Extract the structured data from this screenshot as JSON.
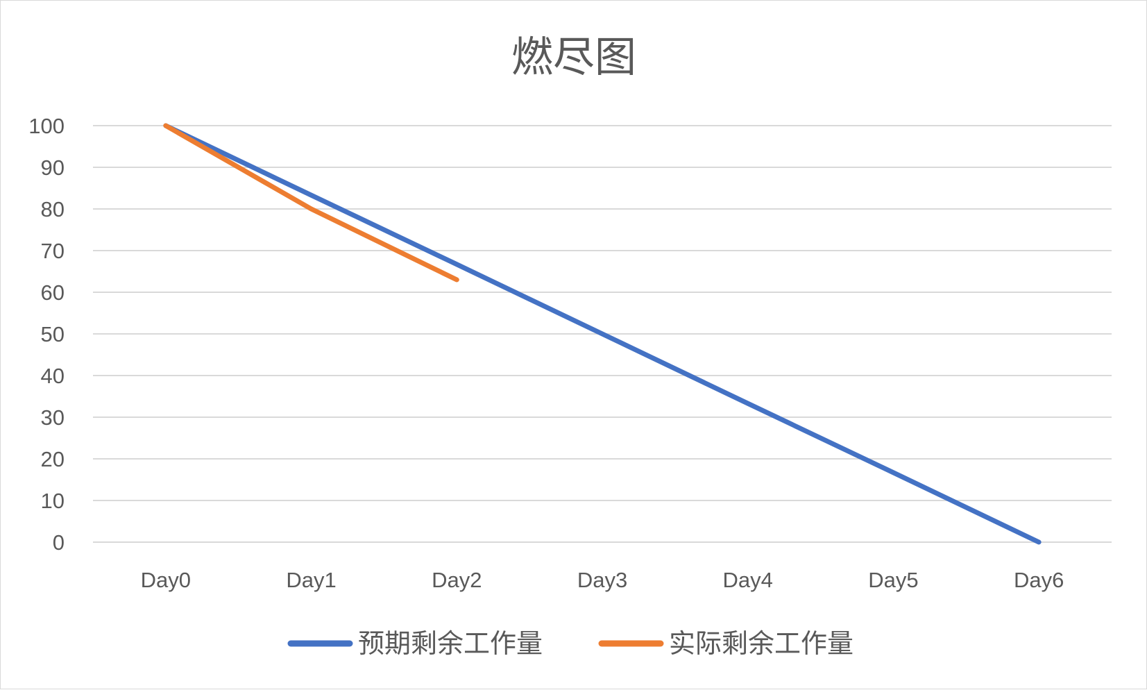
{
  "chart_data": {
    "type": "line",
    "title": "燃尽图",
    "xlabel": "",
    "ylabel": "",
    "categories": [
      "Day0",
      "Day1",
      "Day2",
      "Day3",
      "Day4",
      "Day5",
      "Day6"
    ],
    "ylim": [
      0,
      100
    ],
    "yticks": [
      0,
      10,
      20,
      30,
      40,
      50,
      60,
      70,
      80,
      90,
      100
    ],
    "grid": true,
    "legend_position": "bottom",
    "series": [
      {
        "name": "预期剩余工作量",
        "color": "#4472C4",
        "values": [
          100,
          83.3,
          66.7,
          50,
          33.3,
          16.7,
          0
        ]
      },
      {
        "name": "实际剩余工作量",
        "color": "#ED7D31",
        "values": [
          100,
          80,
          63,
          null,
          null,
          null,
          null
        ]
      }
    ]
  }
}
